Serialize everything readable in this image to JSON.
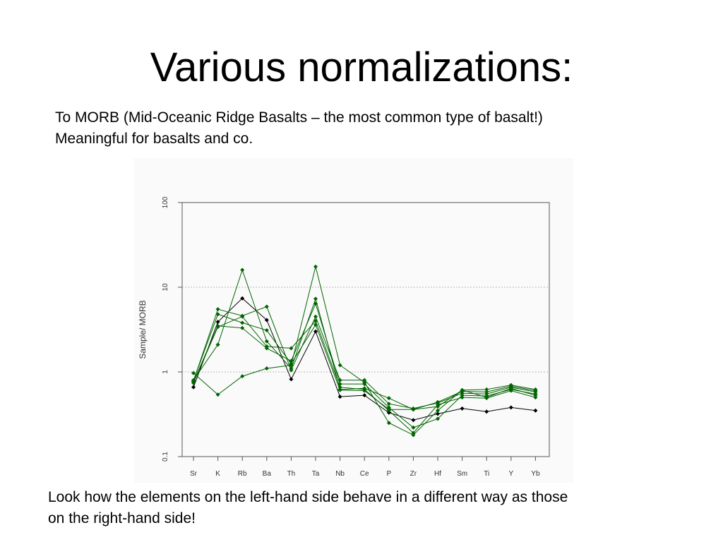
{
  "slide": {
    "title": "Various normalizations:",
    "intro_lines": [
      "To MORB (Mid-Oceanic Ridge Basalts – the most common type of basalt!)",
      "Meaningful for basalts and co."
    ],
    "outro_lines": [
      "Look how the elements on the left-hand side behave in a different way as those",
      "on the right-hand side!"
    ]
  },
  "colors": {
    "green_series": "#006400",
    "black_series": "#000000",
    "axis": "#555555",
    "gridline": "#bbbbbb",
    "panel_background": "#fafafa"
  },
  "chart_data": {
    "type": "line",
    "title": "",
    "xlabel": "",
    "ylabel": "Sample/ MORB",
    "yscale": "log",
    "ylim": [
      0.1,
      100
    ],
    "yticks": [
      0.1,
      1,
      10,
      100
    ],
    "ytick_labels": [
      "0.1",
      "1",
      "10",
      "100"
    ],
    "grid": "horizontal dotted lines at 1 and 10",
    "legend": "none",
    "categories": [
      "Sr",
      "K",
      "Rb",
      "Ba",
      "Th",
      "Ta",
      "Nb",
      "Ce",
      "P",
      "Zr",
      "Hf",
      "Sm",
      "Ti",
      "Y",
      "Yb"
    ],
    "series": [
      {
        "color": "#000000",
        "values": [
          0.66,
          3.9,
          7.4,
          4.1,
          0.82,
          3.0,
          0.51,
          0.53,
          0.33,
          0.27,
          0.32,
          0.37,
          0.34,
          0.38,
          0.35
        ]
      },
      {
        "color": "#006400",
        "values": [
          0.97,
          0.54,
          0.89,
          1.1,
          1.2,
          17.5,
          1.2,
          0.75,
          0.25,
          0.18,
          0.35,
          0.61,
          0.62,
          0.7,
          0.62
        ]
      },
      {
        "color": "#006400",
        "values": [
          0.8,
          2.1,
          16.0,
          2.3,
          1.1,
          7.3,
          0.62,
          0.64,
          0.49,
          0.36,
          0.44,
          0.59,
          0.58,
          0.68,
          0.6
        ]
      },
      {
        "color": "#006400",
        "values": [
          0.78,
          5.5,
          4.6,
          5.9,
          1.05,
          4.5,
          0.8,
          0.8,
          0.42,
          0.37,
          0.43,
          0.56,
          0.55,
          0.66,
          0.58
        ]
      },
      {
        "color": "#006400",
        "values": [
          0.76,
          3.5,
          3.3,
          1.9,
          1.35,
          6.4,
          0.72,
          0.72,
          0.38,
          0.22,
          0.28,
          0.53,
          0.52,
          0.62,
          0.55
        ]
      },
      {
        "color": "#006400",
        "values": [
          0.74,
          3.4,
          4.5,
          2.0,
          1.9,
          4.0,
          0.66,
          0.62,
          0.35,
          0.19,
          0.41,
          0.5,
          0.49,
          0.6,
          0.5
        ]
      },
      {
        "color": "#006400",
        "values": [
          0.79,
          4.8,
          3.8,
          3.1,
          1.25,
          3.6,
          0.61,
          0.6,
          0.36,
          0.36,
          0.39,
          0.61,
          0.5,
          0.64,
          0.53
        ]
      }
    ]
  }
}
